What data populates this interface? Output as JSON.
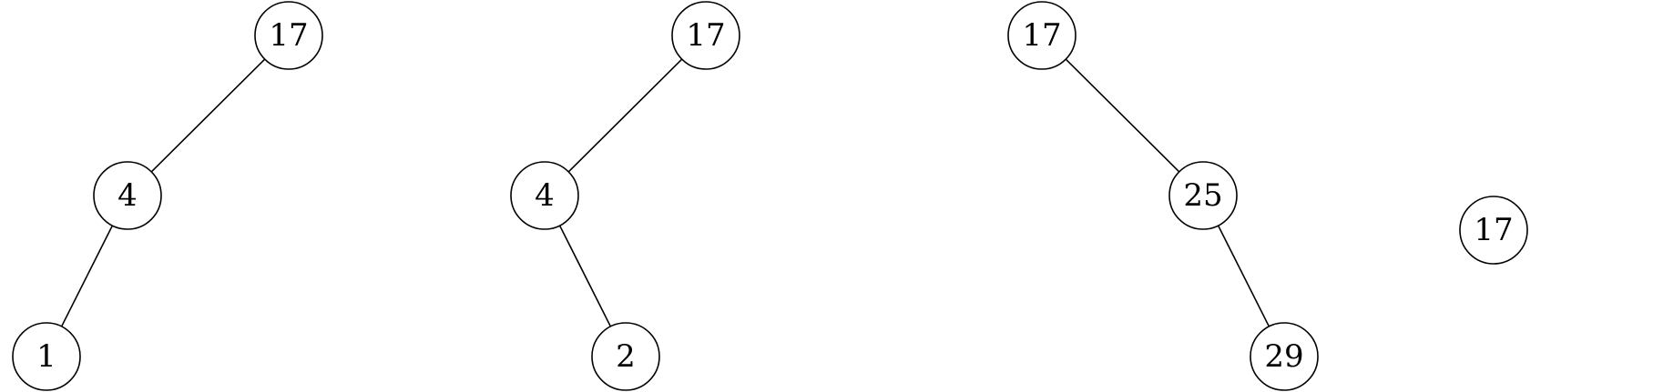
{
  "trees": [
    {
      "id": "tree-1",
      "nodes": [
        {
          "id": "a",
          "label": "17"
        },
        {
          "id": "b",
          "label": "4"
        },
        {
          "id": "c",
          "label": "1"
        }
      ],
      "edges": [
        {
          "from": "a",
          "to": "b"
        },
        {
          "from": "b",
          "to": "c"
        }
      ]
    },
    {
      "id": "tree-2",
      "nodes": [
        {
          "id": "a",
          "label": "17"
        },
        {
          "id": "b",
          "label": "4"
        },
        {
          "id": "c",
          "label": "2"
        }
      ],
      "edges": [
        {
          "from": "a",
          "to": "b"
        },
        {
          "from": "b",
          "to": "c"
        }
      ]
    },
    {
      "id": "tree-3",
      "nodes": [
        {
          "id": "a",
          "label": "17"
        },
        {
          "id": "b",
          "label": "25"
        },
        {
          "id": "c",
          "label": "29"
        }
      ],
      "edges": [
        {
          "from": "a",
          "to": "b"
        },
        {
          "from": "b",
          "to": "c"
        }
      ]
    },
    {
      "id": "tree-4",
      "nodes": [
        {
          "id": "a",
          "label": "17"
        }
      ],
      "edges": []
    }
  ]
}
